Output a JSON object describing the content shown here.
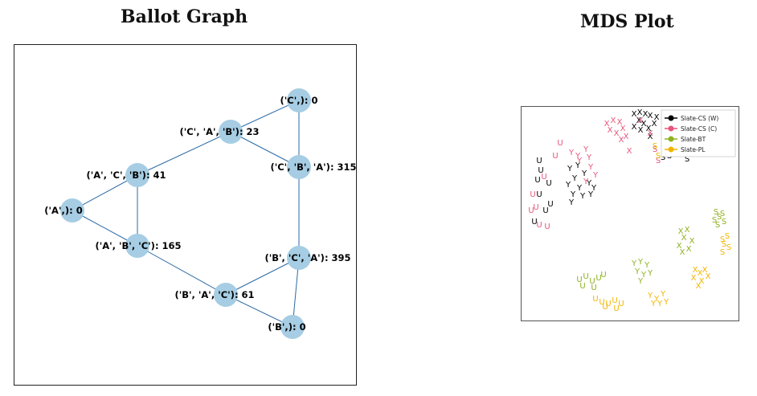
{
  "ballot_graph": {
    "title": "Ballot Graph",
    "nodes": [
      {
        "id": "C",
        "label": "('C',): 0"
      },
      {
        "id": "CAB",
        "label": "('C', 'A', 'B'): 23"
      },
      {
        "id": "CBA",
        "label": "('C', 'B', 'A'): 315"
      },
      {
        "id": "ACB",
        "label": "('A', 'C', 'B'): 41"
      },
      {
        "id": "A",
        "label": "('A',): 0"
      },
      {
        "id": "ABC",
        "label": "('A', 'B', 'C'): 165"
      },
      {
        "id": "BCA",
        "label": "('B', 'C', 'A'): 395"
      },
      {
        "id": "BAC",
        "label": "('B', 'A', 'C'): 61"
      },
      {
        "id": "B",
        "label": "('B',): 0"
      }
    ],
    "edges": [
      [
        "C",
        "CBA"
      ],
      [
        "CAB",
        "C"
      ],
      [
        "CAB",
        "CBA"
      ],
      [
        "CAB",
        "ACB"
      ],
      [
        "ACB",
        "A"
      ],
      [
        "ACB",
        "ABC"
      ],
      [
        "A",
        "ABC"
      ],
      [
        "ABC",
        "BAC"
      ],
      [
        "BAC",
        "BCA"
      ],
      [
        "BAC",
        "B"
      ],
      [
        "BCA",
        "B"
      ],
      [
        "BCA",
        "CBA"
      ]
    ],
    "node_color": "#a6cde3",
    "edge_color": "#2b6aa6"
  },
  "mds_plot": {
    "title": "MDS Plot",
    "legend": [
      {
        "name": "Slate-CS (W)",
        "color": "#000000"
      },
      {
        "name": "Slate-CS (C)",
        "color": "#e8557a"
      },
      {
        "name": "Slate-BT",
        "color": "#8db21f"
      },
      {
        "name": "Slate-PL",
        "color": "#f2b400"
      }
    ],
    "marker_letters": [
      "X",
      "Y",
      "U",
      "S"
    ]
  }
}
